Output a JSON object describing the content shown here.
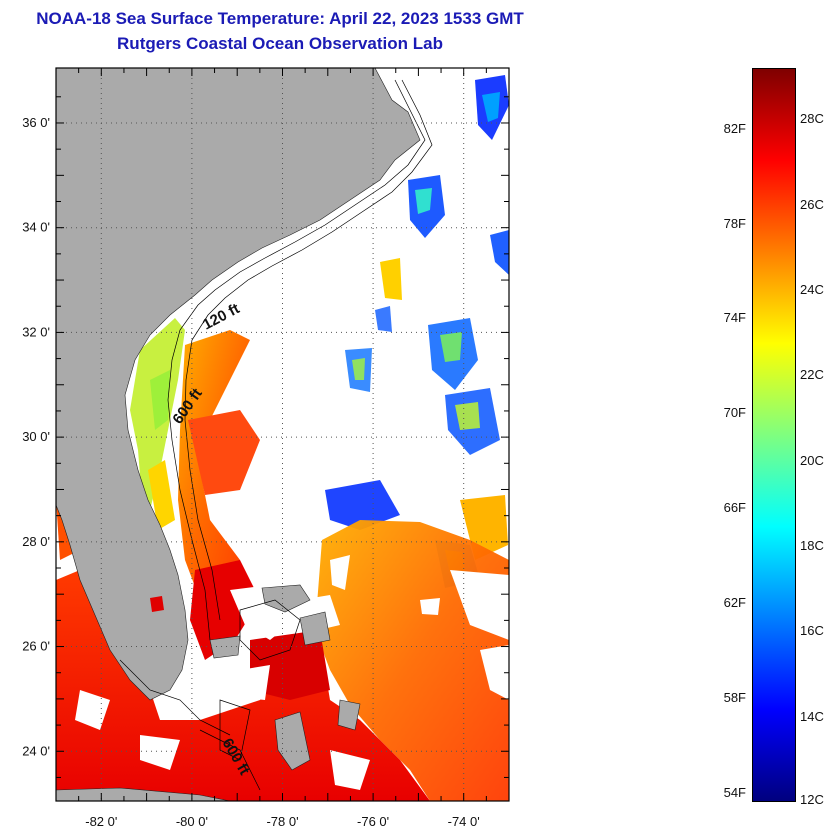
{
  "header": {
    "title": "NOAA-18 Sea Surface Temperature:  April 22, 2023 1533 GMT",
    "subtitle": "Rutgers Coastal Ocean Observation Lab"
  },
  "map": {
    "lat_ticks": [
      {
        "value": 36,
        "label": "36 0'"
      },
      {
        "value": 34,
        "label": "34 0'"
      },
      {
        "value": 32,
        "label": "32 0'"
      },
      {
        "value": 30,
        "label": "30 0'"
      },
      {
        "value": 28,
        "label": "28 0'"
      },
      {
        "value": 26,
        "label": "26 0'"
      },
      {
        "value": 24,
        "label": "24 0'"
      }
    ],
    "lon_ticks": [
      {
        "value": -82,
        "label": "-82 0'"
      },
      {
        "value": -80,
        "label": "-80 0'"
      },
      {
        "value": -78,
        "label": "-78 0'"
      },
      {
        "value": -76,
        "label": "-76 0'"
      },
      {
        "value": -74,
        "label": "-74 0'"
      }
    ],
    "lat_range": [
      23.05,
      37.05
    ],
    "lon_range": [
      -83.0,
      -73.0
    ],
    "contour_labels": [
      "120 ft",
      "600 ft",
      "600 ft"
    ],
    "colors": {
      "land": "#aaaaaa",
      "cloud": "#ffffff",
      "contour": "#000000",
      "grid": "#555555"
    }
  },
  "colorbar": {
    "celsius_labels": [
      {
        "value": 28,
        "label": "28C"
      },
      {
        "value": 26,
        "label": "26C"
      },
      {
        "value": 24,
        "label": "24C"
      },
      {
        "value": 22,
        "label": "22C"
      },
      {
        "value": 20,
        "label": "20C"
      },
      {
        "value": 18,
        "label": "18C"
      },
      {
        "value": 16,
        "label": "16C"
      },
      {
        "value": 14,
        "label": "14C"
      },
      {
        "value": 12,
        "label": "12C"
      }
    ],
    "fahrenheit_labels": [
      {
        "value": 82,
        "label": "82F"
      },
      {
        "value": 78,
        "label": "78F"
      },
      {
        "value": 74,
        "label": "74F"
      },
      {
        "value": 70,
        "label": "70F"
      },
      {
        "value": 66,
        "label": "66F"
      },
      {
        "value": 62,
        "label": "62F"
      },
      {
        "value": 58,
        "label": "58F"
      },
      {
        "value": 54,
        "label": "54F"
      }
    ],
    "range_c": [
      12,
      29.2
    ],
    "gradient": [
      "#00007f",
      "#0000ff",
      "#007fff",
      "#00ffff",
      "#7fff7f",
      "#ffff00",
      "#ff7f00",
      "#ff0000",
      "#7f0000"
    ]
  }
}
